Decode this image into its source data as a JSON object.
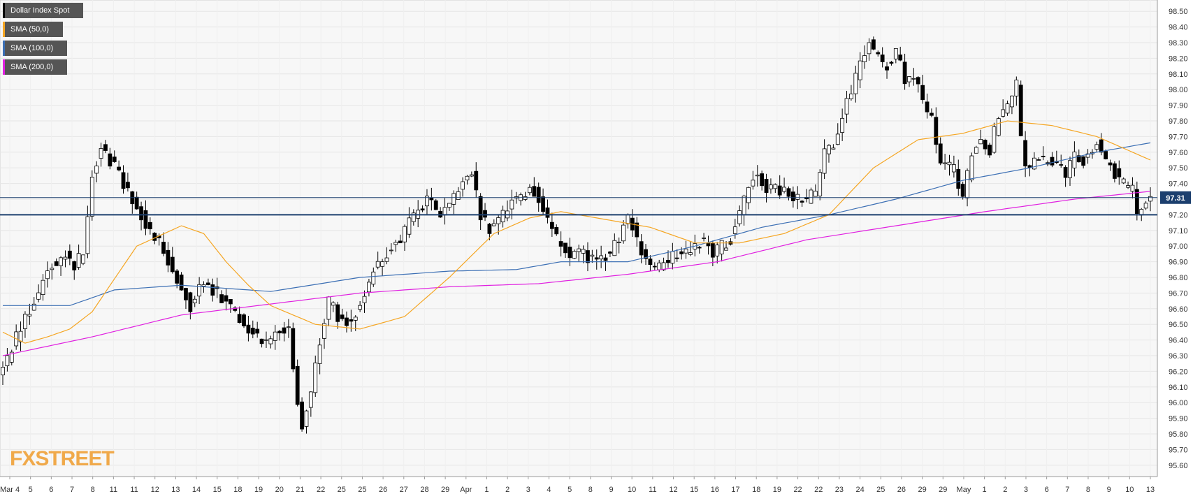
{
  "chart_data": {
    "type": "candlestick",
    "instrument": "Dollar Index Spot",
    "ylim": [
      95.55,
      98.55
    ],
    "y_ticks": [
      "98.50",
      "98.40",
      "98.30",
      "98.20",
      "98.10",
      "98.00",
      "97.90",
      "97.80",
      "97.70",
      "97.60",
      "97.50",
      "97.40",
      "97.30",
      "97.20",
      "97.10",
      "97.00",
      "96.90",
      "96.80",
      "96.70",
      "96.60",
      "96.50",
      "96.40",
      "96.30",
      "96.20",
      "96.10",
      "96.00",
      "95.90",
      "95.80",
      "95.70",
      "95.60"
    ],
    "x_ticks": [
      "Mar 4",
      "5",
      "6",
      "7",
      "8",
      "11",
      "11",
      "12",
      "13",
      "14",
      "15",
      "18",
      "19",
      "20",
      "21",
      "22",
      "25",
      "25",
      "26",
      "27",
      "28",
      "29",
      "Apr",
      "1",
      "2",
      "3",
      "4",
      "5",
      "8",
      "9",
      "10",
      "11",
      "12",
      "15",
      "16",
      "17",
      "18",
      "19",
      "22",
      "22",
      "23",
      "24",
      "25",
      "26",
      "29",
      "29",
      "May",
      "1",
      "2",
      "3",
      "6",
      "7",
      "8",
      "9",
      "10",
      "13"
    ],
    "last_price": "97.31",
    "last_price_value": 97.31,
    "horizontal_level": 97.2,
    "legend": [
      {
        "label": "Dollar Index Spot",
        "color": "#000000"
      },
      {
        "label": "SMA (50,0)",
        "color": "#f5a623"
      },
      {
        "label": "SMA (100,0)",
        "color": "#3c6fb4"
      },
      {
        "label": "SMA (200,0)",
        "color": "#e020e0"
      }
    ],
    "colors": {
      "up": "#ffffff",
      "down": "#000000",
      "sma50": "#f5a623",
      "sma100": "#3c6fb4",
      "sma200": "#e020e0",
      "level": "#1c3f6e",
      "grid": "#e6e6e6"
    },
    "price_path": [
      [
        0,
        96.22
      ],
      [
        2,
        96.35
      ],
      [
        6,
        96.6
      ],
      [
        9,
        96.78
      ],
      [
        11,
        96.88
      ],
      [
        14,
        96.95
      ],
      [
        16,
        96.88
      ],
      [
        18,
        96.95
      ],
      [
        20,
        97.45
      ],
      [
        22,
        97.65
      ],
      [
        24,
        97.55
      ],
      [
        27,
        97.4
      ],
      [
        30,
        97.25
      ],
      [
        33,
        97.1
      ],
      [
        36,
        96.97
      ],
      [
        39,
        96.8
      ],
      [
        42,
        96.62
      ],
      [
        44,
        96.75
      ],
      [
        47,
        96.72
      ],
      [
        50,
        96.65
      ],
      [
        53,
        96.55
      ],
      [
        56,
        96.45
      ],
      [
        59,
        96.4
      ],
      [
        62,
        96.45
      ],
      [
        64,
        96.5
      ],
      [
        66,
        96.0
      ],
      [
        67,
        95.85
      ],
      [
        69,
        96.05
      ],
      [
        71,
        96.4
      ],
      [
        73,
        96.65
      ],
      [
        75,
        96.55
      ],
      [
        78,
        96.5
      ],
      [
        80,
        96.65
      ],
      [
        83,
        96.85
      ],
      [
        86,
        96.95
      ],
      [
        89,
        97.05
      ],
      [
        92,
        97.2
      ],
      [
        95,
        97.3
      ],
      [
        98,
        97.2
      ],
      [
        100,
        97.25
      ],
      [
        103,
        97.4
      ],
      [
        105,
        97.45
      ],
      [
        107,
        97.2
      ],
      [
        109,
        97.1
      ],
      [
        111,
        97.15
      ],
      [
        114,
        97.3
      ],
      [
        116,
        97.3
      ],
      [
        118,
        97.4
      ],
      [
        120,
        97.3
      ],
      [
        122,
        97.15
      ],
      [
        124,
        97.05
      ],
      [
        127,
        96.95
      ],
      [
        130,
        96.95
      ],
      [
        133,
        96.9
      ],
      [
        136,
        96.95
      ],
      [
        138,
        97.05
      ],
      [
        140,
        97.2
      ],
      [
        142,
        97.05
      ],
      [
        144,
        96.9
      ],
      [
        146,
        96.85
      ],
      [
        149,
        96.92
      ],
      [
        152,
        96.95
      ],
      [
        155,
        97.0
      ],
      [
        157,
        97.05
      ],
      [
        159,
        96.95
      ],
      [
        161,
        97.0
      ],
      [
        163,
        97.05
      ],
      [
        165,
        97.2
      ],
      [
        167,
        97.4
      ],
      [
        169,
        97.45
      ],
      [
        171,
        97.38
      ],
      [
        174,
        97.35
      ],
      [
        177,
        97.32
      ],
      [
        180,
        97.3
      ],
      [
        182,
        97.35
      ],
      [
        184,
        97.6
      ],
      [
        186,
        97.65
      ],
      [
        188,
        97.85
      ],
      [
        190,
        98.0
      ],
      [
        192,
        98.15
      ],
      [
        194,
        98.3
      ],
      [
        196,
        98.2
      ],
      [
        198,
        98.15
      ],
      [
        200,
        98.25
      ],
      [
        202,
        98.05
      ],
      [
        204,
        98.05
      ],
      [
        206,
        97.95
      ],
      [
        208,
        97.8
      ],
      [
        210,
        97.5
      ],
      [
        213,
        97.5
      ],
      [
        215,
        97.3
      ],
      [
        217,
        97.6
      ],
      [
        219,
        97.7
      ],
      [
        221,
        97.6
      ],
      [
        223,
        97.85
      ],
      [
        225,
        97.9
      ],
      [
        227,
        98.05
      ],
      [
        228,
        97.7
      ],
      [
        229,
        97.5
      ],
      [
        232,
        97.55
      ],
      [
        235,
        97.55
      ],
      [
        238,
        97.45
      ],
      [
        240,
        97.6
      ],
      [
        242,
        97.55
      ],
      [
        245,
        97.65
      ],
      [
        248,
        97.5
      ],
      [
        251,
        97.4
      ],
      [
        253,
        97.35
      ],
      [
        254,
        97.2
      ],
      [
        255,
        97.25
      ],
      [
        256,
        97.31
      ]
    ],
    "sma50_path": [
      [
        0,
        96.45
      ],
      [
        5,
        96.38
      ],
      [
        10,
        96.42
      ],
      [
        15,
        96.47
      ],
      [
        20,
        96.58
      ],
      [
        30,
        97.0
      ],
      [
        40,
        97.13
      ],
      [
        45,
        97.08
      ],
      [
        50,
        96.9
      ],
      [
        55,
        96.75
      ],
      [
        60,
        96.62
      ],
      [
        70,
        96.5
      ],
      [
        80,
        96.47
      ],
      [
        90,
        96.55
      ],
      [
        100,
        96.8
      ],
      [
        110,
        97.08
      ],
      [
        118,
        97.18
      ],
      [
        125,
        97.22
      ],
      [
        135,
        97.17
      ],
      [
        145,
        97.12
      ],
      [
        155,
        97.02
      ],
      [
        165,
        97.02
      ],
      [
        175,
        97.08
      ],
      [
        185,
        97.2
      ],
      [
        195,
        97.5
      ],
      [
        205,
        97.68
      ],
      [
        215,
        97.72
      ],
      [
        225,
        97.8
      ],
      [
        235,
        97.77
      ],
      [
        245,
        97.7
      ],
      [
        257,
        97.55
      ]
    ],
    "sma100_path": [
      [
        0,
        96.62
      ],
      [
        15,
        96.62
      ],
      [
        25,
        96.72
      ],
      [
        40,
        96.75
      ],
      [
        60,
        96.71
      ],
      [
        80,
        96.8
      ],
      [
        100,
        96.84
      ],
      [
        115,
        96.85
      ],
      [
        125,
        96.9
      ],
      [
        140,
        96.9
      ],
      [
        155,
        97.0
      ],
      [
        170,
        97.12
      ],
      [
        185,
        97.2
      ],
      [
        200,
        97.3
      ],
      [
        215,
        97.42
      ],
      [
        230,
        97.5
      ],
      [
        245,
        97.6
      ],
      [
        257,
        97.66
      ]
    ],
    "sma200_path": [
      [
        0,
        96.3
      ],
      [
        20,
        96.42
      ],
      [
        40,
        96.56
      ],
      [
        60,
        96.63
      ],
      [
        80,
        96.7
      ],
      [
        100,
        96.74
      ],
      [
        120,
        96.76
      ],
      [
        140,
        96.82
      ],
      [
        160,
        96.9
      ],
      [
        180,
        97.04
      ],
      [
        200,
        97.13
      ],
      [
        220,
        97.22
      ],
      [
        240,
        97.3
      ],
      [
        257,
        97.35
      ]
    ]
  },
  "branding": {
    "logo_text": "FXSTREET"
  }
}
